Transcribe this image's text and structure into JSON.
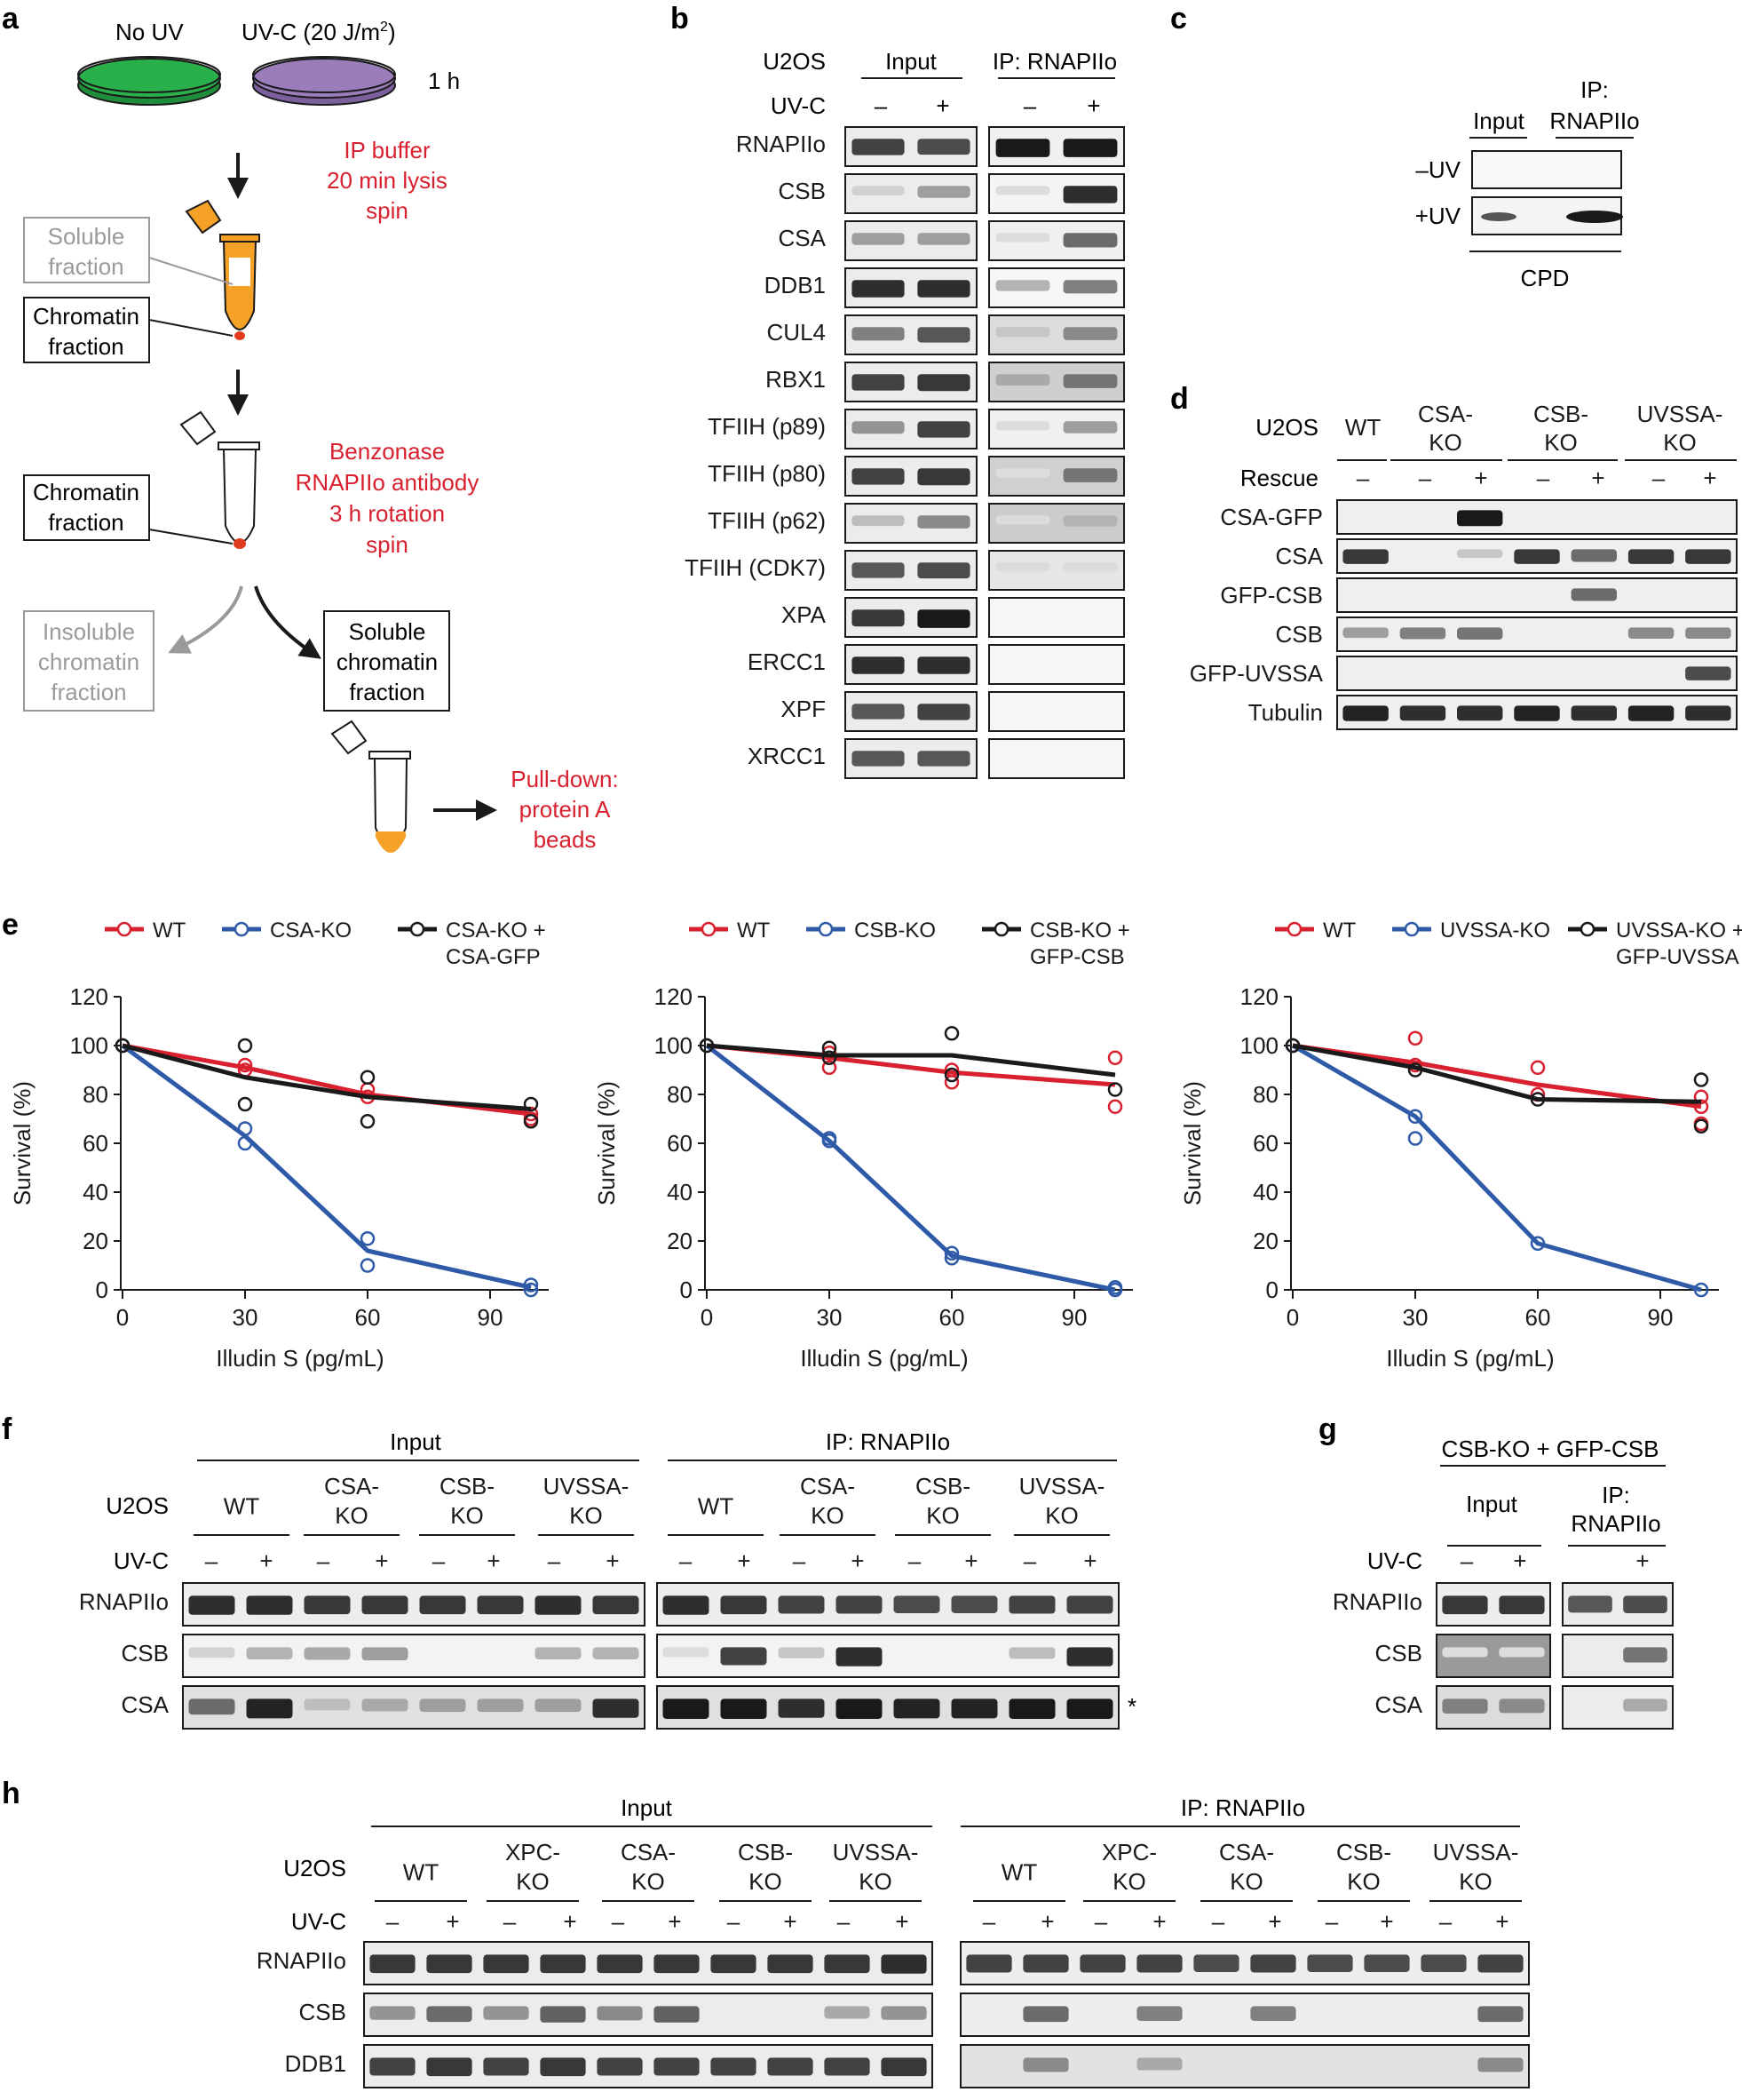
{
  "colors": {
    "red": "#d8202f",
    "blue": "#2e5aa7",
    "black": "#1a1a1a",
    "gray": "#9a9a9a",
    "dishGreen": "#2ab04a",
    "dishPurple": "#9b7dbc",
    "tubeOrange": "#f5a128",
    "pellet": "#e23a1f"
  },
  "panelA": {
    "label": "a",
    "noUV": "No UV",
    "uvc": "UV-C (20 J/m",
    "uvcSup": "2",
    "uvcClose": ")",
    "time": "1 h",
    "step1": [
      "IP buffer",
      "20 min lysis",
      "spin"
    ],
    "soluble": [
      "Soluble",
      "fraction"
    ],
    "chromatin1": [
      "Chromatin",
      "fraction"
    ],
    "step2": [
      "Benzonase",
      "RNAPIIo antibody",
      "3 h rotation",
      "spin"
    ],
    "chromatin2": [
      "Chromatin",
      "fraction"
    ],
    "insoluble": [
      "Insoluble",
      "chromatin",
      "fraction"
    ],
    "solubleChrom": [
      "Soluble",
      "chromatin",
      "fraction"
    ],
    "pulldown": [
      "Pull-down:",
      "protein A",
      "beads"
    ],
    "icons": [
      "petri-dish-icon",
      "tube-icon",
      "arrow-icon"
    ]
  },
  "panelB": {
    "label": "b",
    "cell": "U2OS",
    "input": "Input",
    "ip": "IP: RNAPIIo",
    "uvc": "UV-C",
    "minus": "–",
    "plus": "+",
    "rows": [
      "RNAPIIo",
      "CSB",
      "CSA",
      "DDB1",
      "CUL4",
      "RBX1",
      "TFIIH (p89)",
      "TFIIH (p80)",
      "TFIIH (p62)",
      "TFIIH (CDK7)",
      "XPA",
      "ERCC1",
      "XPF",
      "XRCC1"
    ]
  },
  "panelC": {
    "label": "c",
    "input": "Input",
    "ip": [
      "IP:",
      "RNAPIIo"
    ],
    "rows": [
      "–UV",
      "+UV"
    ],
    "footer": "CPD"
  },
  "panelD": {
    "label": "d",
    "cell": "U2OS",
    "groups": [
      [
        "WT"
      ],
      [
        "CSA-",
        "KO"
      ],
      [
        "CSB-",
        "KO"
      ],
      [
        "UVSSA-",
        "KO"
      ]
    ],
    "rescue": "Rescue",
    "signs": [
      "–",
      "–",
      "+",
      "–",
      "+",
      "–",
      "+"
    ],
    "rows": [
      "CSA-GFP",
      "CSA",
      "GFP-CSB",
      "CSB",
      "GFP-UVSSA",
      "Tubulin"
    ]
  },
  "panelE": {
    "label": "e",
    "ylabel": "Survival (%)",
    "xlabel": "Illudin S (pg/mL)",
    "yticks": [
      "0",
      "20",
      "40",
      "60",
      "80",
      "100",
      "120"
    ],
    "xticks": [
      "0",
      "30",
      "60",
      "90"
    ]
  },
  "chart_data": [
    {
      "type": "line",
      "ylabel": "Survival (%)",
      "xlabel": "Illudin S (pg/mL)",
      "ylim": [
        0,
        120
      ],
      "xlim": [
        0,
        100
      ],
      "legend": [
        "WT",
        "CSA-KO",
        "CSA-KO + CSA-GFP"
      ],
      "series": [
        {
          "name": "WT",
          "color": "#d8202f",
          "x": [
            0,
            30,
            60,
            100
          ],
          "y": [
            100,
            91,
            80,
            72
          ],
          "points": [
            [
              0,
              100
            ],
            [
              30,
              92
            ],
            [
              30,
              90
            ],
            [
              60,
              82
            ],
            [
              60,
              79
            ],
            [
              100,
              72
            ],
            [
              100,
              70
            ]
          ]
        },
        {
          "name": "CSA-KO",
          "color": "#2e5aa7",
          "x": [
            0,
            30,
            60,
            100
          ],
          "y": [
            100,
            63,
            16,
            1
          ],
          "points": [
            [
              0,
              100
            ],
            [
              30,
              66
            ],
            [
              30,
              60
            ],
            [
              60,
              21
            ],
            [
              60,
              10
            ],
            [
              100,
              2
            ],
            [
              100,
              0
            ]
          ]
        },
        {
          "name": "CSA-KO + CSA-GFP",
          "color": "#1a1a1a",
          "x": [
            0,
            30,
            60,
            100
          ],
          "y": [
            100,
            87,
            79,
            74
          ],
          "points": [
            [
              0,
              100
            ],
            [
              30,
              100
            ],
            [
              30,
              76
            ],
            [
              60,
              87
            ],
            [
              60,
              69
            ],
            [
              100,
              76
            ],
            [
              100,
              69
            ]
          ]
        }
      ]
    },
    {
      "type": "line",
      "ylabel": "Survival (%)",
      "xlabel": "Illudin S (pg/mL)",
      "ylim": [
        0,
        120
      ],
      "xlim": [
        0,
        100
      ],
      "legend": [
        "WT",
        "CSB-KO",
        "CSB-KO + GFP-CSB"
      ],
      "series": [
        {
          "name": "WT",
          "color": "#d8202f",
          "x": [
            0,
            30,
            60,
            100
          ],
          "y": [
            100,
            95,
            89,
            84
          ],
          "points": [
            [
              0,
              100
            ],
            [
              30,
              97
            ],
            [
              30,
              91
            ],
            [
              60,
              90
            ],
            [
              60,
              85
            ],
            [
              100,
              95
            ],
            [
              100,
              75
            ]
          ]
        },
        {
          "name": "CSB-KO",
          "color": "#2e5aa7",
          "x": [
            0,
            30,
            60,
            100
          ],
          "y": [
            100,
            61,
            14,
            0
          ],
          "points": [
            [
              0,
              100
            ],
            [
              30,
              62
            ],
            [
              30,
              61
            ],
            [
              60,
              15
            ],
            [
              60,
              13
            ],
            [
              100,
              1
            ],
            [
              100,
              0
            ]
          ]
        },
        {
          "name": "CSB-KO + GFP-CSB",
          "color": "#1a1a1a",
          "x": [
            0,
            30,
            60,
            100
          ],
          "y": [
            100,
            96,
            96,
            88
          ],
          "points": [
            [
              0,
              100
            ],
            [
              30,
              99
            ],
            [
              30,
              95
            ],
            [
              60,
              105
            ],
            [
              60,
              88
            ],
            [
              100,
              82
            ]
          ]
        }
      ]
    },
    {
      "type": "line",
      "ylabel": "Survival (%)",
      "xlabel": "Illudin S (pg/mL)",
      "ylim": [
        0,
        120
      ],
      "xlim": [
        0,
        100
      ],
      "legend": [
        "WT",
        "UVSSA-KO",
        "UVSSA-KO + GFP-UVSSA"
      ],
      "series": [
        {
          "name": "WT",
          "color": "#d8202f",
          "x": [
            0,
            30,
            60,
            100
          ],
          "y": [
            100,
            93,
            84,
            75
          ],
          "points": [
            [
              0,
              100
            ],
            [
              30,
              103
            ],
            [
              30,
              92
            ],
            [
              60,
              91
            ],
            [
              60,
              80
            ],
            [
              100,
              79
            ],
            [
              100,
              75
            ],
            [
              100,
              68
            ]
          ]
        },
        {
          "name": "UVSSA-KO",
          "color": "#2e5aa7",
          "x": [
            0,
            30,
            60,
            100
          ],
          "y": [
            100,
            71,
            19,
            0
          ],
          "points": [
            [
              0,
              100
            ],
            [
              30,
              71
            ],
            [
              30,
              62
            ],
            [
              60,
              19
            ],
            [
              100,
              0
            ]
          ]
        },
        {
          "name": "UVSSA-KO + GFP-UVSSA",
          "color": "#1a1a1a",
          "x": [
            0,
            30,
            60,
            100
          ],
          "y": [
            100,
            91,
            78,
            77
          ],
          "points": [
            [
              0,
              100
            ],
            [
              30,
              90
            ],
            [
              60,
              78
            ],
            [
              100,
              86
            ],
            [
              100,
              67
            ]
          ]
        }
      ]
    }
  ],
  "panelF": {
    "label": "f",
    "cell": "U2OS",
    "input": "Input",
    "ip": "IP: RNAPIIo",
    "groups": [
      [
        "WT"
      ],
      [
        "CSA-",
        "KO"
      ],
      [
        "CSB-",
        "KO"
      ],
      [
        "UVSSA-",
        "KO"
      ]
    ],
    "uvc": "UV-C",
    "rows": [
      "RNAPIIo",
      "CSB",
      "CSA"
    ],
    "asterisk": "*"
  },
  "panelG": {
    "label": "g",
    "title": "CSB-KO + GFP-CSB",
    "input": "Input",
    "ip": [
      "IP:",
      "RNAPIIo"
    ],
    "uvc": "UV-C",
    "rows": [
      "RNAPIIo",
      "CSB",
      "CSA"
    ]
  },
  "panelH": {
    "label": "h",
    "cell": "U2OS",
    "input": "Input",
    "ip": "IP: RNAPIIo",
    "groups": [
      [
        "WT"
      ],
      [
        "XPC-",
        "KO"
      ],
      [
        "CSA-",
        "KO"
      ],
      [
        "CSB-",
        "KO"
      ],
      [
        "UVSSA-",
        "KO"
      ]
    ],
    "uvc": "UV-C",
    "rows": [
      "RNAPIIo",
      "CSB",
      "DDB1"
    ]
  }
}
